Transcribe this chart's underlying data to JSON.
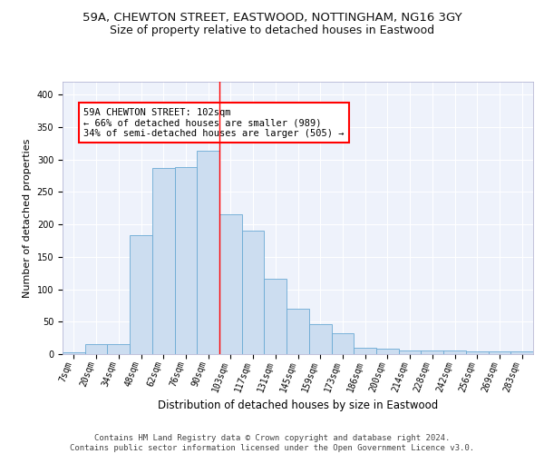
{
  "title1": "59A, CHEWTON STREET, EASTWOOD, NOTTINGHAM, NG16 3GY",
  "title2": "Size of property relative to detached houses in Eastwood",
  "xlabel": "Distribution of detached houses by size in Eastwood",
  "ylabel": "Number of detached properties",
  "bar_color": "#ccddf0",
  "bar_edge_color": "#6aaad4",
  "background_color": "#eef2fb",
  "grid_color": "#ffffff",
  "categories": [
    "7sqm",
    "20sqm",
    "34sqm",
    "48sqm",
    "62sqm",
    "76sqm",
    "90sqm",
    "103sqm",
    "117sqm",
    "131sqm",
    "145sqm",
    "159sqm",
    "173sqm",
    "186sqm",
    "200sqm",
    "214sqm",
    "228sqm",
    "242sqm",
    "256sqm",
    "269sqm",
    "283sqm"
  ],
  "values": [
    3,
    15,
    15,
    184,
    287,
    288,
    313,
    216,
    190,
    116,
    70,
    46,
    32,
    10,
    8,
    6,
    5,
    5,
    4,
    4,
    4
  ],
  "ylim": [
    0,
    420
  ],
  "yticks": [
    0,
    50,
    100,
    150,
    200,
    250,
    300,
    350,
    400
  ],
  "vline_x": 6.5,
  "annotation_text": "59A CHEWTON STREET: 102sqm\n← 66% of detached houses are smaller (989)\n34% of semi-detached houses are larger (505) →",
  "footer_text": "Contains HM Land Registry data © Crown copyright and database right 2024.\nContains public sector information licensed under the Open Government Licence v3.0.",
  "title1_fontsize": 9.5,
  "title2_fontsize": 9,
  "axis_label_fontsize": 8.5,
  "ylabel_fontsize": 8,
  "tick_fontsize": 7,
  "annotation_fontsize": 7.5,
  "footer_fontsize": 6.5
}
